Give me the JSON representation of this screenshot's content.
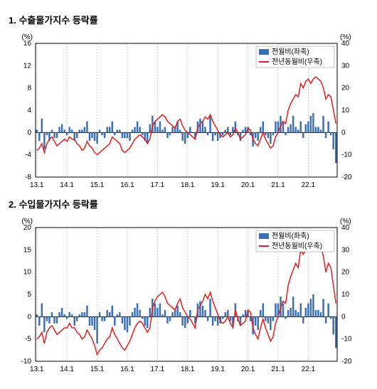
{
  "chart1": {
    "title": "1. 수출물가지수 등락률",
    "type": "bar+line",
    "left_unit": "(%)",
    "right_unit": "(%)",
    "legend": {
      "bar": "전월비(좌축)",
      "line": "전년동월비(우축)"
    },
    "x_categories": [
      "13.1",
      "14.1",
      "15.1",
      "16.1",
      "17.1",
      "18.1",
      "19.1",
      "20.1",
      "21.1",
      "22.1"
    ],
    "left_ylim": [
      -8,
      16
    ],
    "left_ticks": [
      -8,
      -4,
      0,
      4,
      8,
      12,
      16
    ],
    "right_ylim": [
      -20,
      40
    ],
    "right_ticks": [
      -20,
      -10,
      0,
      10,
      20,
      30,
      40
    ],
    "background_color": "#ffffff",
    "grid_color": "#d0d0d0",
    "bar_color": "#3b6fb5",
    "line_color": "#e02020",
    "title_fontsize": 13,
    "label_fontsize": 10,
    "bars": [
      0.5,
      -1.5,
      2.5,
      -3,
      -0.5,
      -1.5,
      0.5,
      -1,
      -1,
      1,
      1.5,
      0.5,
      -0.5,
      1,
      0.5,
      -1.5,
      -1,
      0.5,
      0.5,
      1,
      2,
      -1.5,
      -1,
      -1.5,
      -2,
      0.5,
      -0.5,
      -1,
      1,
      1,
      2,
      -0.5,
      0.5,
      0.5,
      -1,
      -1,
      -1,
      -1.5,
      0.5,
      1,
      2,
      1,
      -0.5,
      -1.5,
      -2,
      1.5,
      3,
      2,
      1,
      2,
      0.5,
      1,
      -1,
      -0.5,
      1,
      1,
      2,
      0.5,
      -1.5,
      -2,
      -1,
      1,
      0,
      -1,
      2,
      2.5,
      2,
      1,
      -0.5,
      3,
      -1.5,
      -0.5,
      -1.5,
      -1,
      -0.5,
      0.5,
      1,
      -0.5,
      1,
      2,
      -0.5,
      -1.5,
      0.5,
      1,
      1,
      -0.5,
      -2.5,
      -1,
      -1.5,
      1,
      2,
      -0.5,
      -1,
      -2,
      -0.5,
      2,
      2,
      3,
      2,
      -0.5,
      1,
      1.5,
      3,
      1,
      0.5,
      2,
      -1,
      1.5,
      2,
      3,
      3.5,
      1,
      1,
      0.5,
      3,
      -1,
      2,
      -0.5,
      -3,
      -5.5
    ],
    "line": [
      -8,
      -7,
      -5,
      -9,
      -5,
      -3,
      -2,
      -4,
      -6,
      -5,
      -4,
      -3,
      -4,
      -2,
      -3,
      -3,
      -5,
      -6,
      -8,
      -7,
      -4,
      -6,
      -7,
      -9,
      -10,
      -9,
      -8,
      -7,
      -6,
      -5,
      -2,
      -3,
      -4,
      -5,
      -8,
      -9,
      -8,
      -7,
      -5,
      -3,
      -2,
      -1,
      -2,
      -3,
      -5,
      -3,
      3,
      5,
      6,
      7,
      8,
      7,
      5,
      4,
      3,
      2,
      5,
      6,
      3,
      1,
      0,
      -1,
      -2,
      -3,
      2,
      4,
      5,
      7,
      6,
      8,
      5,
      3,
      1,
      -1,
      -2,
      -1,
      0,
      -2,
      -1,
      2,
      0,
      -3,
      -2,
      -1,
      2,
      1,
      -3,
      -5,
      -6,
      -3,
      0,
      -3,
      -5,
      -7,
      -6,
      -2,
      0,
      3,
      5,
      4,
      10,
      13,
      15,
      17,
      16,
      22,
      20,
      23,
      24,
      22,
      24,
      25,
      24,
      23,
      20,
      15,
      17,
      16,
      10,
      4
    ]
  },
  "chart2": {
    "title": "2. 수입물가지수 등락률",
    "type": "bar+line",
    "left_unit": "(%)",
    "right_unit": "(%)",
    "legend": {
      "bar": "전월비(좌축)",
      "line": "전년동월비(우축)"
    },
    "x_categories": [
      "13.1",
      "14.1",
      "15.1",
      "16.1",
      "17.1",
      "18.1",
      "19.1",
      "20.1",
      "21.1",
      "22.1"
    ],
    "left_ylim": [
      -10,
      20
    ],
    "left_ticks": [
      -10,
      -5,
      0,
      5,
      10,
      15,
      20
    ],
    "right_ylim": [
      -20,
      40
    ],
    "right_ticks": [
      -20,
      -10,
      0,
      10,
      20,
      30,
      40
    ],
    "background_color": "#ffffff",
    "grid_color": "#d0d0d0",
    "bar_color": "#3b6fb5",
    "line_color": "#e02020",
    "title_fontsize": 13,
    "label_fontsize": 10,
    "bars": [
      0.5,
      -2,
      3,
      -3.5,
      -1,
      -1.5,
      1,
      -1.5,
      -1.5,
      1,
      2,
      0.5,
      -0.5,
      1,
      0.5,
      -2,
      -1,
      0.5,
      1,
      1,
      2.5,
      -2,
      -2,
      -3,
      -6,
      1,
      -1,
      -1,
      1.5,
      1,
      2.5,
      -2,
      0.5,
      1,
      -1.5,
      -3,
      -3.5,
      -2,
      1,
      2,
      3,
      1.5,
      -0.5,
      -2,
      -2.5,
      2,
      4,
      3,
      2,
      3,
      0.5,
      1.5,
      -1.5,
      -1,
      1,
      1.5,
      2.5,
      1,
      -2,
      -2.5,
      -1.5,
      1.5,
      0,
      -1.5,
      3,
      3.5,
      2.5,
      1.5,
      -1,
      4,
      -2,
      -1,
      -2,
      -1.5,
      -0.5,
      1,
      1.5,
      -1,
      -2,
      3,
      -1,
      -2,
      0.5,
      1.5,
      1.5,
      -1,
      -4,
      -2,
      -3,
      1.5,
      3,
      -1,
      -1.5,
      -3,
      -1,
      3,
      3,
      4.5,
      3,
      -0.5,
      1.5,
      2,
      4.5,
      1.5,
      1,
      3,
      -1.5,
      2,
      3,
      4,
      5,
      1.5,
      1.5,
      1,
      4,
      -1.5,
      3,
      -0.5,
      -4,
      -7
    ],
    "line": [
      -10,
      -9,
      -7,
      -12,
      -7,
      -5,
      -4,
      -6,
      -8,
      -7,
      -6,
      -5,
      -5,
      -3,
      -5,
      -5,
      -7,
      -8,
      -10,
      -9,
      -6,
      -8,
      -10,
      -13,
      -17,
      -15,
      -14,
      -12,
      -10,
      -9,
      -5,
      -8,
      -10,
      -12,
      -14,
      -15,
      -13,
      -11,
      -8,
      -5,
      -3,
      -2,
      -3,
      -5,
      -7,
      -5,
      4,
      7,
      9,
      10,
      11,
      9,
      6,
      5,
      4,
      3,
      6,
      8,
      4,
      2,
      0,
      -1,
      -3,
      -5,
      3,
      5,
      7,
      10,
      8,
      11,
      7,
      4,
      1,
      -2,
      -3,
      -2,
      0,
      -3,
      -5,
      3,
      -1,
      -4,
      -3,
      -2,
      3,
      2,
      -5,
      -8,
      -10,
      -5,
      -1,
      -5,
      -8,
      -11,
      -9,
      -3,
      0,
      4,
      7,
      6,
      14,
      18,
      21,
      24,
      22,
      30,
      28,
      30,
      32,
      30,
      33,
      35,
      33,
      32,
      27,
      20,
      24,
      22,
      14,
      6
    ]
  }
}
